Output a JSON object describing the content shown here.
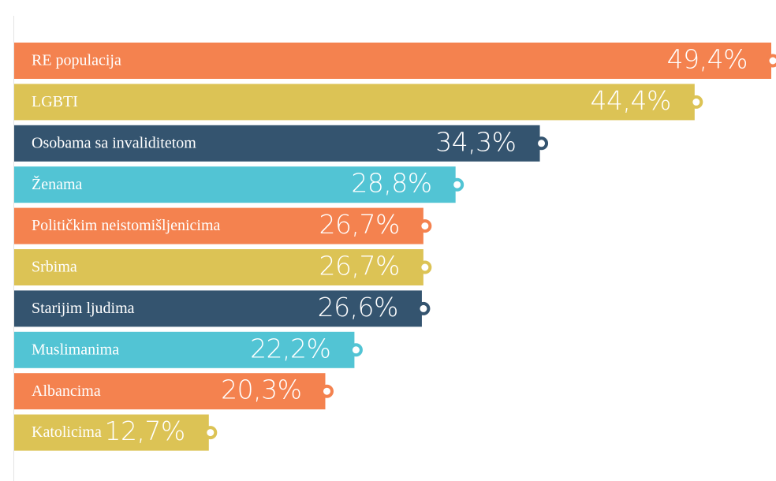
{
  "chart_data": {
    "type": "barh",
    "categories": [
      "RE populacija",
      "LGBTI",
      "Osobama sa invaliditetom",
      "Ženama",
      "Političkim neistomišljenicima",
      "Srbima",
      "Starijim ljudima",
      "Muslimanima",
      "Albancima",
      "Katolicima"
    ],
    "values": [
      49.4,
      44.4,
      34.3,
      28.8,
      26.7,
      26.7,
      26.6,
      22.2,
      20.3,
      12.7
    ],
    "value_labels": [
      "49,4%",
      "44,4%",
      "34,3%",
      "28,8%",
      "26,7%",
      "26,7%",
      "26,6%",
      "22,2%",
      "20,3%",
      "12,7%"
    ],
    "colors": [
      "#f4824f",
      "#dcc355",
      "#34546f",
      "#52c4d4",
      "#f4824f",
      "#dcc355",
      "#34546f",
      "#52c4d4",
      "#f4824f",
      "#dcc355"
    ]
  }
}
